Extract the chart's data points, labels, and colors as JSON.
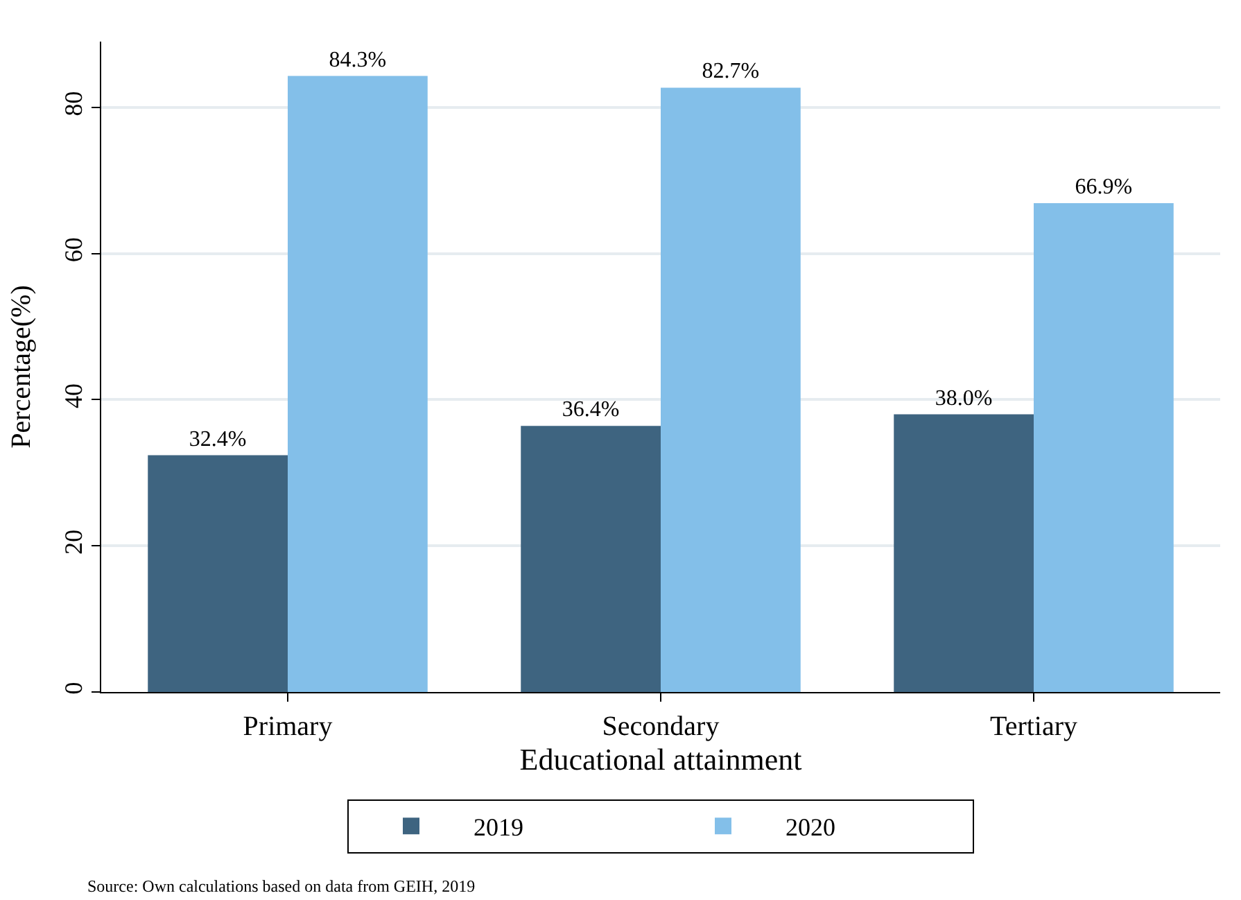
{
  "chart_data": {
    "type": "bar",
    "xlabel": "Educational attainment",
    "ylabel": "Percentage(%)",
    "categories": [
      "Primary",
      "Secondary",
      "Tertiary"
    ],
    "series": [
      {
        "name": "2019",
        "color": "#3e6480",
        "values": [
          32.4,
          36.4,
          38.0
        ],
        "value_labels": [
          "32.4%",
          "36.4%",
          "38.0%"
        ]
      },
      {
        "name": "2020",
        "color": "#83bfe9",
        "values": [
          84.3,
          82.7,
          66.9
        ],
        "value_labels": [
          "84.3%",
          "82.7%",
          "66.9%"
        ]
      }
    ],
    "ylim": [
      0,
      89
    ],
    "yticks": [
      0,
      20,
      40,
      60,
      80
    ],
    "grid": "y",
    "legend": "bottom",
    "annotations": [
      "Source: Own calculations based on data from GEIH, 2019"
    ]
  }
}
